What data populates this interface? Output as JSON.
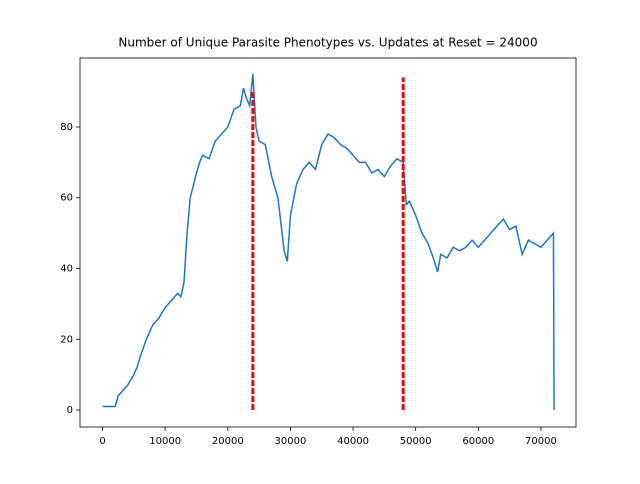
{
  "chart_data": {
    "type": "line",
    "title": "Number of Unique Parasite Phenotypes vs. Updates at Reset = 24000",
    "x": [
      0,
      1000,
      2000,
      2500,
      3000,
      3500,
      4000,
      5000,
      5500,
      6000,
      7000,
      7500,
      8000,
      9000,
      10000,
      11000,
      12000,
      12500,
      13000,
      13500,
      14000,
      15000,
      15500,
      16000,
      17000,
      18000,
      19000,
      20000,
      21000,
      22000,
      22500,
      23000,
      23500,
      24000,
      24500,
      25000,
      26000,
      27000,
      28000,
      29000,
      29500,
      30000,
      31000,
      32000,
      33000,
      34000,
      35000,
      36000,
      37000,
      38000,
      39000,
      40000,
      41000,
      42000,
      43000,
      44000,
      45000,
      46000,
      47000,
      48000,
      48500,
      49000,
      50000,
      51000,
      52000,
      53000,
      53500,
      54000,
      55000,
      56000,
      57000,
      58000,
      59000,
      60000,
      61000,
      62000,
      63000,
      64000,
      65000,
      66000,
      67000,
      68000,
      69000,
      70000,
      71000,
      72000,
      72100
    ],
    "series": [
      {
        "color": "#1f77b4",
        "values": [
          1,
          1,
          1,
          4,
          5,
          6,
          7,
          10,
          12,
          15,
          20,
          22,
          24,
          26,
          29,
          31,
          33,
          32,
          36,
          50,
          60,
          67,
          70,
          72,
          71,
          76,
          78,
          80,
          85,
          86,
          91,
          88,
          86,
          95,
          80,
          76,
          75,
          66,
          60,
          45,
          42,
          55,
          64,
          68,
          70,
          68,
          75,
          78,
          77,
          75,
          74,
          72,
          70,
          70,
          67,
          68,
          66,
          69,
          71,
          70,
          58,
          59,
          55,
          50,
          47,
          42,
          39,
          44,
          43,
          46,
          45,
          46,
          48,
          46,
          48,
          50,
          52,
          54,
          51,
          52,
          44,
          48,
          47,
          46,
          48,
          50,
          0
        ]
      }
    ],
    "vlines": [
      {
        "x": 24000,
        "ymin": 0,
        "ymax": 90,
        "color": "#ff0000"
      },
      {
        "x": 48000,
        "ymin": 0,
        "ymax": 94,
        "color": "#ff0000"
      }
    ],
    "xlim": [
      -3600,
      75600
    ],
    "ylim": [
      -4.8,
      99.5
    ],
    "xticks": [
      0,
      10000,
      20000,
      30000,
      40000,
      50000,
      60000,
      70000
    ],
    "yticks": [
      0,
      20,
      40,
      60,
      80
    ],
    "grid": false
  }
}
